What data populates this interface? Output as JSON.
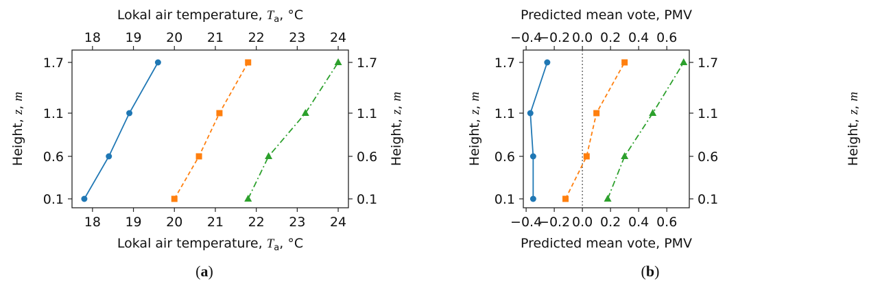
{
  "chart_data": [
    {
      "type": "line",
      "panel_label": "(a)",
      "xlabel_top": "Lokal air temperature, T_a, °C",
      "xlabel_bottom": "Lokal air temperature, T_a, °C",
      "ylabel_left": "Height, z, m",
      "ylabel_right": "Height, z, m",
      "xlim": [
        17.5,
        24.25
      ],
      "x_ticks": [
        18,
        19,
        20,
        21,
        22,
        23,
        24
      ],
      "y_categories": [
        "0.1",
        "0.6",
        "1.1",
        "1.7"
      ],
      "grid": false,
      "series": [
        {
          "x": [
            17.8,
            18.4,
            18.9,
            19.6
          ],
          "y": [
            "0.1",
            "0.6",
            "1.1",
            "1.7"
          ],
          "color": "#1f77b4",
          "marker": "circle",
          "line": "solid"
        },
        {
          "x": [
            20.0,
            20.6,
            21.1,
            21.8
          ],
          "y": [
            "0.1",
            "0.6",
            "1.1",
            "1.7"
          ],
          "color": "#ff7f0e",
          "marker": "square",
          "line": "dashed"
        },
        {
          "x": [
            21.8,
            22.3,
            23.2,
            24.0
          ],
          "y": [
            "0.1",
            "0.6",
            "1.1",
            "1.7"
          ],
          "color": "#2ca02c",
          "marker": "triangle",
          "line": "dashdot"
        }
      ]
    },
    {
      "type": "line",
      "panel_label": "(b)",
      "xlabel_top": "Predicted mean vote, PMV",
      "xlabel_bottom": "Predicted mean vote, PMV",
      "ylabel_left": "Height, z, m",
      "ylabel_right": "Height, z, m",
      "xlim": [
        -0.42,
        0.76
      ],
      "x_ticks": [
        -0.4,
        -0.2,
        0.0,
        0.2,
        0.4,
        0.6
      ],
      "x_tick_labels": [
        "−0.4",
        "−0.2",
        "0.0",
        "0.2",
        "0.4",
        "0.6"
      ],
      "y_categories": [
        "0.1",
        "0.6",
        "1.1",
        "1.7"
      ],
      "reference_line_x": 0.0,
      "grid": false,
      "series": [
        {
          "x": [
            -0.35,
            -0.35,
            -0.37,
            -0.25
          ],
          "y": [
            "0.1",
            "0.6",
            "1.1",
            "1.7"
          ],
          "color": "#1f77b4",
          "marker": "circle",
          "line": "solid"
        },
        {
          "x": [
            -0.12,
            0.03,
            0.1,
            0.3
          ],
          "y": [
            "0.1",
            "0.6",
            "1.1",
            "1.7"
          ],
          "color": "#ff7f0e",
          "marker": "square",
          "line": "dashed"
        },
        {
          "x": [
            0.18,
            0.3,
            0.5,
            0.72
          ],
          "y": [
            "0.1",
            "0.6",
            "1.1",
            "1.7"
          ],
          "color": "#2ca02c",
          "marker": "triangle",
          "line": "dashdot"
        }
      ]
    }
  ]
}
